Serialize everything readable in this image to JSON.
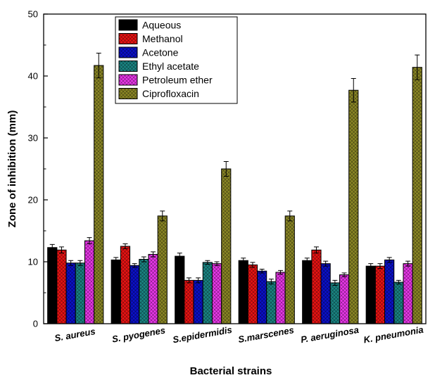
{
  "chart_data": {
    "type": "bar",
    "xlabel": "Bacterial strains",
    "ylabel": "Zone of inhibition (mm)",
    "ylim": [
      0,
      50
    ],
    "yticks": [
      "0",
      "10",
      "20",
      "30",
      "40",
      "50"
    ],
    "categories": [
      "S. aureus",
      "S. pyogenes",
      "S.epidermidis",
      "S.marscenes",
      "P. aeruginosa",
      "K. pneumonia"
    ],
    "legend_position": "top-center",
    "grid": false,
    "series": [
      {
        "name": "Aqueous",
        "color": "#000000",
        "pattern": "none",
        "values": [
          12.3,
          10.3,
          10.9,
          10.2,
          10.2,
          9.3
        ],
        "errors": [
          0.5,
          0.4,
          0.5,
          0.4,
          0.4,
          0.4
        ]
      },
      {
        "name": "Methanol",
        "color": "#e81313",
        "pattern": "diamond",
        "values": [
          11.9,
          12.5,
          7.0,
          9.5,
          11.9,
          9.3
        ],
        "errors": [
          0.5,
          0.4,
          0.4,
          0.4,
          0.5,
          0.4
        ]
      },
      {
        "name": "Acetone",
        "color": "#0b10c9",
        "pattern": "diamond",
        "values": [
          9.8,
          9.4,
          7.0,
          8.5,
          9.7,
          10.3
        ],
        "errors": [
          0.4,
          0.3,
          0.4,
          0.3,
          0.4,
          0.4
        ]
      },
      {
        "name": "Ethyl acetate",
        "color": "#1a8482",
        "pattern": "diamond",
        "values": [
          9.8,
          10.4,
          9.9,
          6.8,
          6.6,
          6.7
        ],
        "errors": [
          0.4,
          0.4,
          0.3,
          0.4,
          0.4,
          0.3
        ]
      },
      {
        "name": "Petroleum ether",
        "color": "#e836e8",
        "pattern": "diamond",
        "values": [
          13.4,
          11.2,
          9.7,
          8.3,
          7.9,
          9.7
        ],
        "errors": [
          0.5,
          0.4,
          0.3,
          0.3,
          0.3,
          0.4
        ]
      },
      {
        "name": "Ciprofloxacin",
        "color": "#8a8625",
        "pattern": "diamond",
        "values": [
          41.7,
          17.4,
          25.0,
          17.4,
          37.7,
          41.4
        ],
        "errors": [
          2.0,
          0.8,
          1.2,
          0.8,
          1.9,
          2.0
        ]
      }
    ]
  }
}
